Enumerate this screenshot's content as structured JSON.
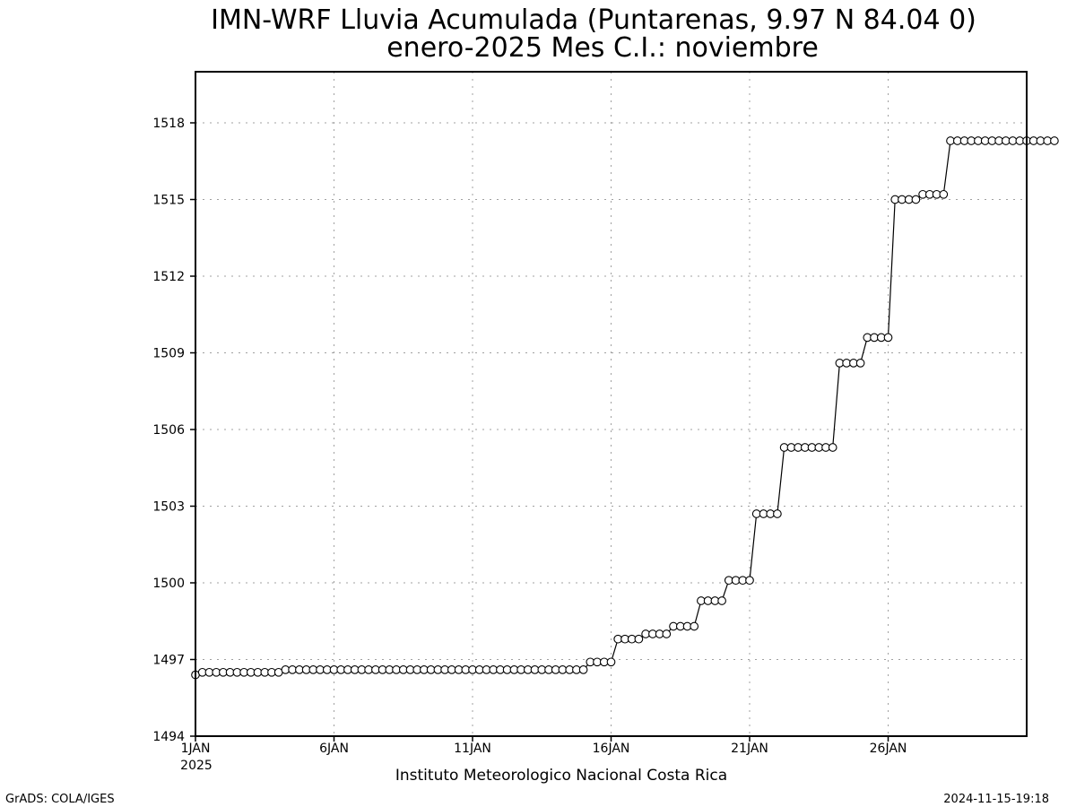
{
  "chart_data": {
    "type": "line",
    "title": "IMN-WRF  Lluvia Acumulada (Puntarenas, 9.97  N 84.04  0)",
    "subtitle": "enero-2025 Mes C.I.: noviembre",
    "xlabel": "Instituto Meteorologico Nacional Costa Rica",
    "ylabel": "",
    "ylim": [
      1494,
      1520
    ],
    "xlim": [
      1,
      31
    ],
    "yticks": [
      1494,
      1497,
      1500,
      1503,
      1506,
      1509,
      1512,
      1515,
      1518
    ],
    "xticks": [
      {
        "value": 1,
        "label": "1JAN"
      },
      {
        "value": 6,
        "label": "6JAN"
      },
      {
        "value": 11,
        "label": "11JAN"
      },
      {
        "value": 16,
        "label": "16JAN"
      },
      {
        "value": 21,
        "label": "21JAN"
      },
      {
        "value": 26,
        "label": "26JAN"
      }
    ],
    "xtick_sublabel": "2025",
    "grid": true,
    "marker": "open-circle",
    "line_color": "#000000",
    "x_start_day": 1,
    "x_step_days": 0.25,
    "values": [
      1496.4,
      1496.5,
      1496.5,
      1496.5,
      1496.5,
      1496.5,
      1496.5,
      1496.5,
      1496.5,
      1496.5,
      1496.5,
      1496.5,
      1496.5,
      1496.6,
      1496.6,
      1496.6,
      1496.6,
      1496.6,
      1496.6,
      1496.6,
      1496.6,
      1496.6,
      1496.6,
      1496.6,
      1496.6,
      1496.6,
      1496.6,
      1496.6,
      1496.6,
      1496.6,
      1496.6,
      1496.6,
      1496.6,
      1496.6,
      1496.6,
      1496.6,
      1496.6,
      1496.6,
      1496.6,
      1496.6,
      1496.6,
      1496.6,
      1496.6,
      1496.6,
      1496.6,
      1496.6,
      1496.6,
      1496.6,
      1496.6,
      1496.6,
      1496.6,
      1496.6,
      1496.6,
      1496.6,
      1496.6,
      1496.6,
      1496.6,
      1496.9,
      1496.9,
      1496.9,
      1496.9,
      1497.8,
      1497.8,
      1497.8,
      1497.8,
      1498.0,
      1498.0,
      1498.0,
      1498.0,
      1498.3,
      1498.3,
      1498.3,
      1498.3,
      1499.3,
      1499.3,
      1499.3,
      1499.3,
      1500.1,
      1500.1,
      1500.1,
      1500.1,
      1502.7,
      1502.7,
      1502.7,
      1502.7,
      1505.3,
      1505.3,
      1505.3,
      1505.3,
      1505.3,
      1505.3,
      1505.3,
      1505.3,
      1508.6,
      1508.6,
      1508.6,
      1508.6,
      1509.6,
      1509.6,
      1509.6,
      1509.6,
      1515.0,
      1515.0,
      1515.0,
      1515.0,
      1515.2,
      1515.2,
      1515.2,
      1515.2,
      1517.3,
      1517.3,
      1517.3,
      1517.3,
      1517.3,
      1517.3,
      1517.3,
      1517.3,
      1517.3,
      1517.3,
      1517.3,
      1517.3,
      1517.3,
      1517.3,
      1517.3,
      1517.3
    ]
  },
  "footer": {
    "left": "GrADS: COLA/IGES",
    "right": "2024-11-15-19:18"
  }
}
